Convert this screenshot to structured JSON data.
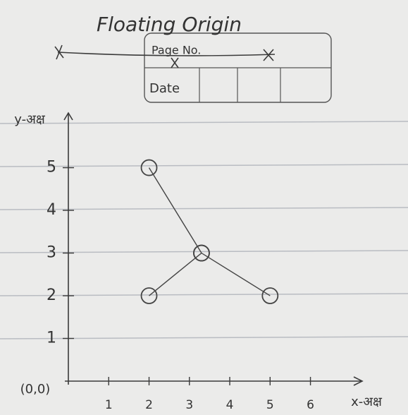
{
  "chart_data": {
    "type": "line",
    "title": "Floating Origin",
    "x_label": "x-अक्ष",
    "y_label": "y-अक्ष",
    "origin_label": "(0,0)",
    "series": [
      {
        "color": "#444444",
        "x": [
          2,
          3.3,
          5
        ],
        "values": [
          5,
          3,
          2
        ]
      },
      {
        "color": "#444444",
        "x": [
          2,
          3.3
        ],
        "values": [
          2,
          3
        ]
      }
    ],
    "marker": "circle",
    "xlim": [
      0,
      7.3
    ],
    "ylim": [
      0,
      6.2
    ],
    "xticks": [
      1,
      2,
      3,
      4,
      5,
      6
    ],
    "yticks": [
      1,
      2,
      3,
      4,
      5
    ]
  },
  "page_box": {
    "page_no": "Page No.",
    "date": "Date"
  }
}
